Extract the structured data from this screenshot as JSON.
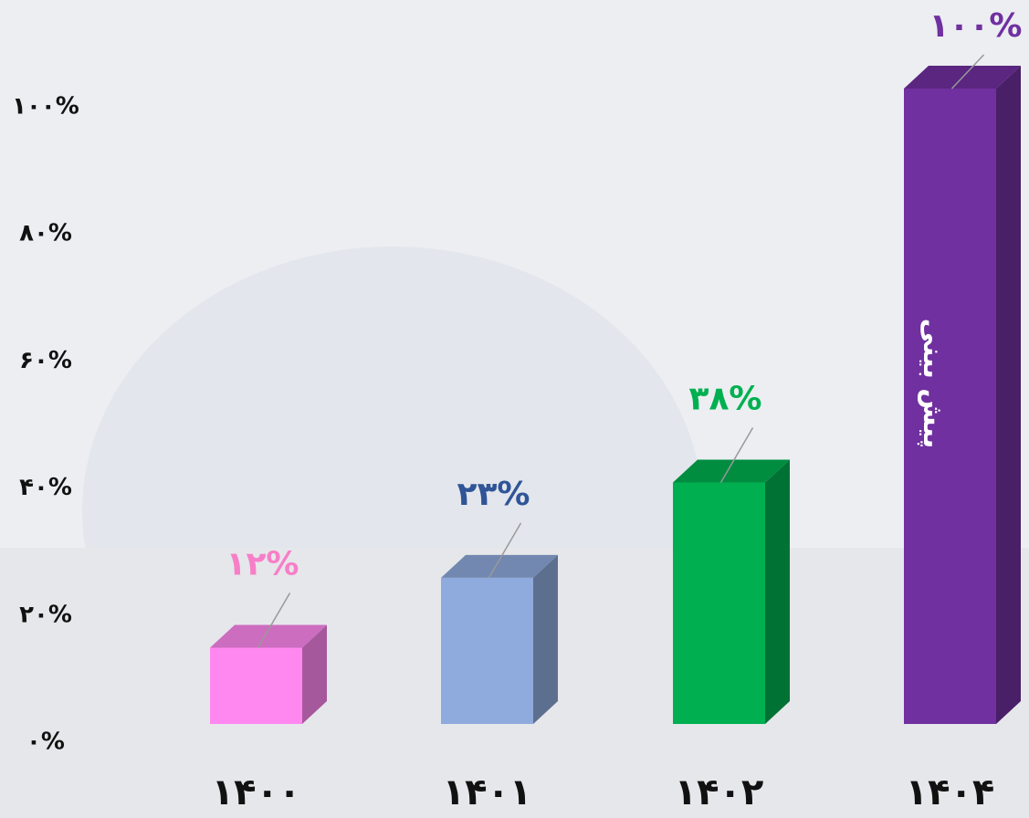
{
  "chart_data": {
    "type": "bar3d",
    "categories": [
      "۱۴۰۰",
      "۱۴۰۱",
      "۱۴۰۲",
      "۱۴۰۴"
    ],
    "values": [
      12,
      23,
      38,
      100
    ],
    "value_labels": [
      "۱۲%",
      "۲۳%",
      "۳۸%",
      "۱۰۰%"
    ],
    "colors": [
      "#ff88f0",
      "#8faadc",
      "#00b050",
      "#7030a0"
    ],
    "label_colors": [
      "#f77fc8",
      "#2f5597",
      "#00b050",
      "#7030a0"
    ],
    "annotation": "پیش بینی",
    "ylim": [
      0,
      100
    ],
    "yticks": [
      {
        "value": 0,
        "label": "۰%"
      },
      {
        "value": 20,
        "label": "۲۰%"
      },
      {
        "value": 40,
        "label": "۴۰%"
      },
      {
        "value": 60,
        "label": "۶۰%"
      },
      {
        "value": 80,
        "label": "۸۰%"
      },
      {
        "value": 100,
        "label": "۱۰۰%"
      }
    ]
  }
}
